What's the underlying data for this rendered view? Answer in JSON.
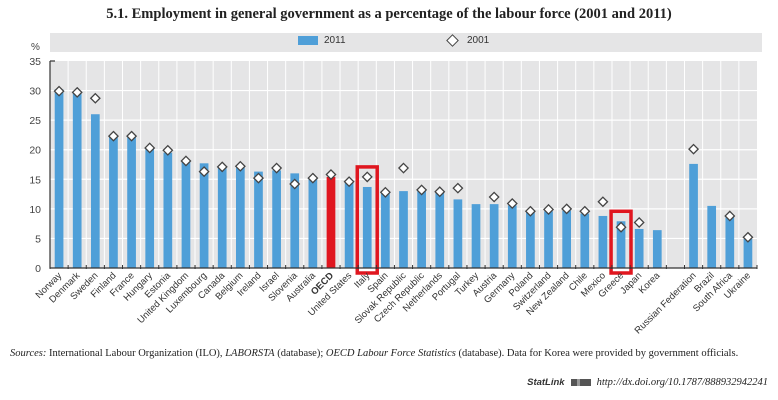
{
  "chart_data": {
    "type": "bar",
    "title": "5.1.  Employment in general government as a percentage of the labour force (2001 and 2011)",
    "ylabel": "%",
    "xlabel": "",
    "ylim": [
      0,
      35
    ],
    "yticks": [
      0,
      5,
      10,
      15,
      20,
      25,
      30,
      35
    ],
    "grid": true,
    "legend_position": "top",
    "legend": [
      {
        "name": "2011",
        "marker": "bar"
      },
      {
        "name": "2001",
        "marker": "diamond"
      }
    ],
    "categories": [
      "Norway",
      "Denmark",
      "Sweden",
      "Finland",
      "France",
      "Hungary",
      "Estonia",
      "United Kingdom",
      "Luxembourg",
      "Canada",
      "Belgium",
      "Ireland",
      "Israel",
      "Slovenia",
      "Australia",
      "OECD",
      "United States",
      "Italy",
      "Spain",
      "Slovak Republic",
      "Czech Republic",
      "Netherlands",
      "Portugal",
      "Turkey",
      "Austria",
      "Germany",
      "Poland",
      "Switzerland",
      "New Zealand",
      "Chile",
      "Mexico",
      "Greece",
      "Japan",
      "Korea",
      "",
      "Russian Federation",
      "Brazil",
      "South Africa",
      "Ukraine"
    ],
    "series": [
      {
        "name": "2011",
        "type": "bar",
        "values": [
          30.2,
          29.8,
          26.0,
          22.3,
          22.3,
          20.3,
          19.5,
          17.9,
          17.7,
          16.9,
          17.0,
          16.3,
          16.5,
          16.0,
          15.1,
          15.4,
          14.7,
          13.7,
          12.7,
          13.0,
          13.3,
          12.8,
          11.6,
          10.8,
          10.8,
          10.6,
          9.4,
          9.6,
          9.7,
          9.2,
          8.8,
          7.9,
          6.6,
          6.4,
          null,
          17.6,
          10.5,
          8.6,
          4.9
        ]
      },
      {
        "name": "2001",
        "type": "diamond",
        "values": [
          29.9,
          29.7,
          28.7,
          22.3,
          22.3,
          20.3,
          19.9,
          18.1,
          16.3,
          17.1,
          17.2,
          15.2,
          16.9,
          14.2,
          15.2,
          15.8,
          14.6,
          15.4,
          12.8,
          16.9,
          13.2,
          12.9,
          13.5,
          null,
          12.0,
          10.9,
          9.6,
          9.9,
          10.0,
          9.6,
          11.2,
          6.9,
          7.7,
          null,
          null,
          20.1,
          null,
          8.8,
          5.2
        ]
      }
    ],
    "highlighted_bar": "OECD",
    "highlight_boxes": [
      "Italy",
      "Greece"
    ],
    "colors": {
      "bar": "#4f9fd8",
      "highlight_bar": "#e0161f",
      "highlight_box": "#e0161f",
      "plot_bg": "#e5e5e6",
      "grid": "#ffffff"
    }
  },
  "legend": {
    "bar_label": "2011",
    "diamond_label": "2001"
  },
  "source": {
    "prefix": "Sources:",
    "text1": " International Labour Organization (ILO), ",
    "italic1": "LABORSTA",
    "text2": " (database); ",
    "italic2": "OECD Labour Force Statistics",
    "text3": " (database). Data for Korea were provided by government officials."
  },
  "statlink": {
    "label": "StatLink",
    "url": "http://dx.doi.org/10.1787/888932942241"
  }
}
